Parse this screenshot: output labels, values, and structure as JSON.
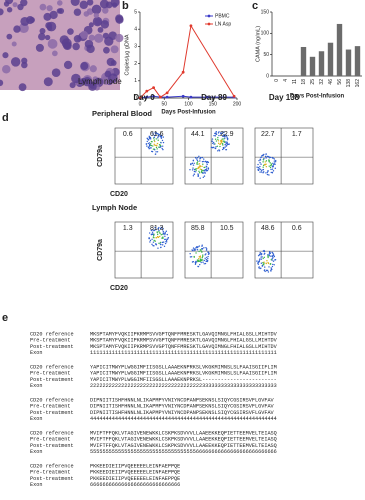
{
  "panel_labels": [
    "a",
    "b",
    "c",
    "d",
    "e"
  ],
  "image": {
    "label": "Lymph node"
  },
  "chart_data": [
    {
      "type": "line",
      "y_label": "Copies/µg gDNA",
      "x_label": "Days Post-Infusion",
      "xlim": [
        0,
        200
      ],
      "xticks": [
        0,
        50,
        100,
        150,
        200
      ],
      "ylim": [
        0,
        5
      ],
      "yticks": [
        0,
        1,
        2,
        3,
        4,
        5
      ],
      "legend": "top-right",
      "series": [
        {
          "name": "PBMC",
          "color": "#3a3ac8",
          "x": [
            0,
            14,
            28,
            42,
            56,
            89,
            105,
            138,
            194
          ],
          "values": [
            0,
            0.05,
            0.1,
            0.05,
            0.05,
            0.1,
            0.05,
            0.05,
            0.05
          ]
        },
        {
          "name": "LN Asp",
          "color": "#e03a2e",
          "x": [
            0,
            14,
            28,
            42,
            56,
            89,
            105,
            194
          ],
          "values": [
            0,
            0.4,
            0.6,
            0.05,
            0.3,
            1.5,
            4.2,
            0.1
          ]
        }
      ]
    },
    {
      "type": "bar",
      "y_label": "CAMA (ng/mL)",
      "x_label": "Days Post-Infusion",
      "color": "#6b6b6b",
      "ylim": [
        0,
        150
      ],
      "yticks": [
        0,
        50,
        100,
        150
      ],
      "categories": [
        "0",
        "4",
        "11",
        "18",
        "25",
        "32",
        "46",
        "56",
        "138",
        "162"
      ],
      "values": [
        0,
        0,
        0,
        68,
        45,
        58,
        78,
        122,
        62,
        70
      ]
    }
  ],
  "flow": {
    "days": [
      "Day 0",
      "Day 89",
      "Day 138"
    ],
    "rows": [
      "Peripheral Blood",
      "Lymph Node"
    ],
    "y_axis": "CD79a",
    "x_axis": "CD20",
    "quadrants": [
      [
        [
          "0.6",
          "61.6"
        ],
        [
          "44.1",
          "22.9"
        ],
        [
          "22.7",
          "1.7"
        ]
      ],
      [
        [
          "1.3",
          "81.3"
        ],
        [
          "85.8",
          "10.5"
        ],
        [
          "48.6",
          "0.6"
        ]
      ]
    ]
  },
  "alignment": {
    "names": [
      "CD20 reference",
      "Pre-treatment",
      "Post-treatment",
      "Exon"
    ],
    "blocks": [
      [
        "MKSPTAMYFVQKIIPKRMPSVVGPTQNFFMRESKTLGAVQIMNGLFHIALGSLLMIHTDV",
        "MKSPTAMYFVQKIIPKRMPSVVGPTQNFFMRESKTLGAVQIMNGLFHIALGSLLMIHTDV",
        "MKSPTAMYFVQKIIPKRMPSVVGPTQNFFMRESKTLGAVQIMNGLFHIALGSLLMIHTDV",
        "111111111111111111111111111111111111111111111111111111111111"
      ],
      [
        "YAPICITMWYPLWGGIMFIISGSLLAAAEKNPRKSLVKGKMIMNSLSLFAAISGIIFLIM",
        "YAPICITMWYPLWGGIMFIISGSLLAAAEKNPRKSLVKGKMIMNSLSLFAAISGIIFLIM",
        "YAPICITMWYPLWGGIMFIISGSLLAAAEKNPRKSL------------------------",
        "222222222222222222222222222222222222333333333333333333333333"
      ],
      [
        "DIPNIITISHFHNNLNLIKAPMPYVNIYNCDPANPSEKNSLSIQYCGSIRSVFLGVFAV",
        "DIPNIITISHFHNNLNLIKAPMPYVNIYNCDPANPSEKNSLSIQYCGSIRSVFLGVFAV",
        "DIPNIITISHFHNNLNLIKAPMPYVNIYNCDPANPSEKNSLSIQYCGSIRSVFLGVFAV",
        "444444444444444444444444444444444444444444444444444444444444"
      ],
      [
        "MVIFTFFQKLVTAGIVENEWKKLCSKPKSDVVVLLAAEEKKEQPIETTEEMVELTEIASQ",
        "MVIFTFFQKLVTAGIVENEWKKLCSKPKSDVVVLLAAEEKKEQPIETTEEMVELTEIASQ",
        "MVIFTFFQKLVTAGIVENEWKKLCSKPKSDVVVLLAAEEKKEQPIETTEEMVELTEIASQ",
        "555555555555555555555555555555555566666666666666666666666666"
      ],
      [
        "PKKEEDIEIIPVQEEEEELEINFAEPPQE",
        "PKKEEDIEIIPVQEEEEELEINFAEPPQE",
        "PKKEEDIEIIPVQEEEEELEINFAEPPQE",
        "66666666666666666666666666666"
      ]
    ]
  }
}
